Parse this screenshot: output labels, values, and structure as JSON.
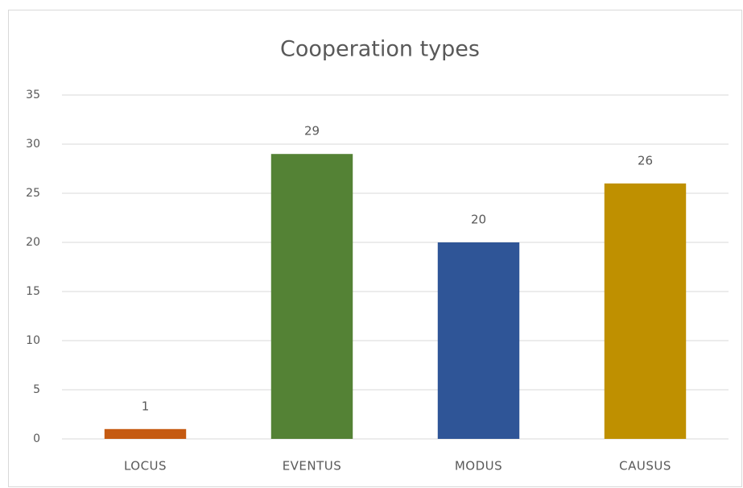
{
  "chart_data": {
    "type": "bar",
    "title": "Cooperation types",
    "categories": [
      "LOCUS",
      "EVENTUS",
      "MODUS",
      "CAUSUS"
    ],
    "values": [
      1,
      29,
      20,
      26
    ],
    "colors": [
      "#c55a11",
      "#548235",
      "#2f5597",
      "#bf9000"
    ],
    "ylim": [
      0,
      35
    ],
    "yticks": [
      0,
      5,
      10,
      15,
      20,
      25,
      30,
      35
    ],
    "grid": true,
    "data_labels": true
  }
}
